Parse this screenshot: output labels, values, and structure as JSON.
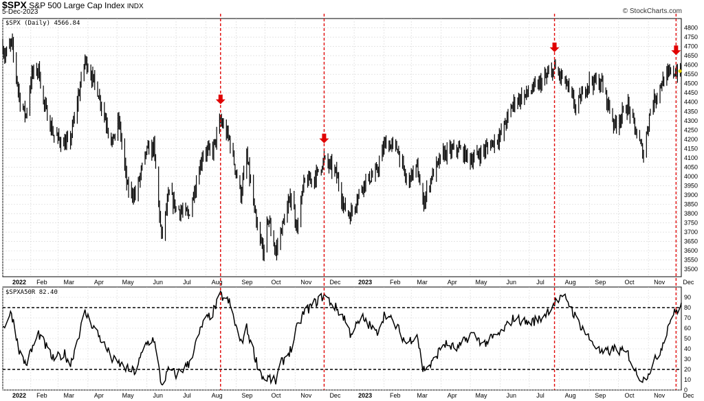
{
  "header": {
    "ticker": "$SPX",
    "name": "S&P 500 Large Cap Index",
    "exchange": "INDX",
    "date": "5-Dec-2023",
    "credit": "© StockCharts.com"
  },
  "colors": {
    "price": "#000000",
    "signal": "#e00000",
    "grid": "#d4d4d4",
    "dashed_level": "#000000"
  },
  "chart_data": [
    {
      "type": "line",
      "name": "price-panel",
      "legend": "$SPX (Daily) 4566.84",
      "x_range": [
        "2022-01-03",
        "2023-12-05"
      ],
      "ylim": [
        3460,
        4850
      ],
      "y_ticks": [
        3500,
        3550,
        3600,
        3650,
        3700,
        3750,
        3800,
        3850,
        3900,
        3950,
        4000,
        4050,
        4100,
        4150,
        4200,
        4250,
        4300,
        4350,
        4400,
        4450,
        4500,
        4550,
        4600,
        4650,
        4700,
        4750,
        4800
      ],
      "month_labels": [
        "2022",
        "Feb",
        "Mar",
        "Apr",
        "May",
        "Jun",
        "Jul",
        "Aug",
        "Sep",
        "Oct",
        "Nov",
        "Dec",
        "2023",
        "Feb",
        "Mar",
        "Apr",
        "May",
        "Jun",
        "Jul",
        "Aug",
        "Sep",
        "Oct",
        "Nov",
        "Dec"
      ],
      "series": [
        {
          "x": [
            "2022-01-03",
            "2022-01-05",
            "2022-01-12",
            "2022-01-21",
            "2022-01-27",
            "2022-02-02",
            "2022-02-09",
            "2022-02-14",
            "2022-02-24",
            "2022-03-08",
            "2022-03-14",
            "2022-03-29",
            "2022-04-11",
            "2022-04-26",
            "2022-05-03",
            "2022-05-12",
            "2022-05-20",
            "2022-05-31",
            "2022-06-08",
            "2022-06-16",
            "2022-06-24",
            "2022-07-01",
            "2022-07-14",
            "2022-07-29",
            "2022-08-08",
            "2022-08-16",
            "2022-08-25",
            "2022-09-06",
            "2022-09-12",
            "2022-09-23",
            "2022-09-30",
            "2022-10-04",
            "2022-10-12",
            "2022-10-17",
            "2022-10-28",
            "2022-11-03",
            "2022-11-10",
            "2022-11-22",
            "2022-12-01",
            "2022-12-13",
            "2022-12-22",
            "2022-12-28",
            "2023-01-10",
            "2023-01-24",
            "2023-02-02",
            "2023-02-15",
            "2023-02-24",
            "2023-03-07",
            "2023-03-13",
            "2023-03-22",
            "2023-04-03",
            "2023-04-18",
            "2023-05-02",
            "2023-05-15",
            "2023-06-01",
            "2023-06-15",
            "2023-06-30",
            "2023-07-14",
            "2023-07-27",
            "2023-08-08",
            "2023-08-18",
            "2023-09-01",
            "2023-09-14",
            "2023-09-27",
            "2023-10-11",
            "2023-10-20",
            "2023-10-27",
            "2023-11-03",
            "2023-11-14",
            "2023-11-24",
            "2023-12-05"
          ],
          "values": [
            4700,
            4650,
            4720,
            4400,
            4330,
            4550,
            4580,
            4400,
            4230,
            4170,
            4200,
            4630,
            4460,
            4180,
            4300,
            3930,
            3900,
            4130,
            4160,
            3670,
            3910,
            3830,
            3790,
            4130,
            4140,
            4300,
            4200,
            3900,
            4110,
            3700,
            3590,
            3780,
            3590,
            3700,
            3900,
            3720,
            3960,
            4000,
            4090,
            4020,
            3830,
            3790,
            3960,
            4020,
            4180,
            4150,
            3970,
            4050,
            3850,
            4000,
            4120,
            4150,
            4090,
            4140,
            4220,
            4400,
            4450,
            4510,
            4580,
            4500,
            4370,
            4515,
            4500,
            4275,
            4380,
            4225,
            4120,
            4360,
            4500,
            4560,
            4567
          ]
        }
      ]
    },
    {
      "type": "line",
      "name": "breadth-panel",
      "legend": "$SPXA50R 82.40",
      "x_range": [
        "2022-01-03",
        "2023-12-05"
      ],
      "ylim": [
        0,
        100
      ],
      "y_ticks": [
        0,
        10,
        20,
        30,
        40,
        50,
        60,
        70,
        80,
        90
      ],
      "reference_levels": [
        80,
        20
      ],
      "month_labels": [
        "2022",
        "Feb",
        "Mar",
        "Apr",
        "May",
        "Jun",
        "Jul",
        "Aug",
        "Sep",
        "Oct",
        "Nov",
        "Dec",
        "2023",
        "Feb",
        "Mar",
        "Apr",
        "May",
        "Jun",
        "Jul",
        "Aug",
        "Sep",
        "Oct",
        "Nov",
        "Dec"
      ],
      "series": [
        {
          "x": [
            "2022-01-03",
            "2022-01-12",
            "2022-01-21",
            "2022-01-27",
            "2022-02-09",
            "2022-02-24",
            "2022-03-08",
            "2022-03-14",
            "2022-03-29",
            "2022-04-11",
            "2022-04-26",
            "2022-05-12",
            "2022-05-20",
            "2022-05-31",
            "2022-06-08",
            "2022-06-16",
            "2022-06-24",
            "2022-07-01",
            "2022-07-14",
            "2022-07-29",
            "2022-08-08",
            "2022-08-16",
            "2022-08-25",
            "2022-09-06",
            "2022-09-12",
            "2022-09-23",
            "2022-09-30",
            "2022-10-04",
            "2022-10-12",
            "2022-10-17",
            "2022-10-28",
            "2022-11-03",
            "2022-11-10",
            "2022-11-22",
            "2022-12-01",
            "2022-12-13",
            "2022-12-22",
            "2022-12-28",
            "2023-01-10",
            "2023-01-24",
            "2023-02-02",
            "2023-02-15",
            "2023-02-24",
            "2023-03-07",
            "2023-03-13",
            "2023-03-22",
            "2023-04-03",
            "2023-04-18",
            "2023-05-02",
            "2023-05-15",
            "2023-06-01",
            "2023-06-15",
            "2023-06-30",
            "2023-07-14",
            "2023-07-27",
            "2023-08-08",
            "2023-08-18",
            "2023-09-01",
            "2023-09-14",
            "2023-09-27",
            "2023-10-11",
            "2023-10-20",
            "2023-10-27",
            "2023-11-03",
            "2023-11-14",
            "2023-11-24",
            "2023-12-01",
            "2023-12-05"
          ],
          "values": [
            60,
            75,
            35,
            25,
            55,
            30,
            35,
            25,
            75,
            55,
            30,
            20,
            18,
            45,
            50,
            5,
            20,
            15,
            25,
            65,
            75,
            92,
            85,
            45,
            60,
            25,
            10,
            12,
            8,
            25,
            40,
            60,
            75,
            85,
            92,
            80,
            70,
            55,
            70,
            55,
            75,
            60,
            45,
            55,
            20,
            25,
            45,
            40,
            55,
            45,
            55,
            70,
            65,
            70,
            85,
            90,
            70,
            50,
            35,
            40,
            35,
            15,
            10,
            20,
            40,
            70,
            78,
            82
          ]
        }
      ]
    }
  ],
  "signals": {
    "dates": [
      "2022-08-16",
      "2022-12-01",
      "2023-07-27",
      "2023-12-01"
    ]
  }
}
